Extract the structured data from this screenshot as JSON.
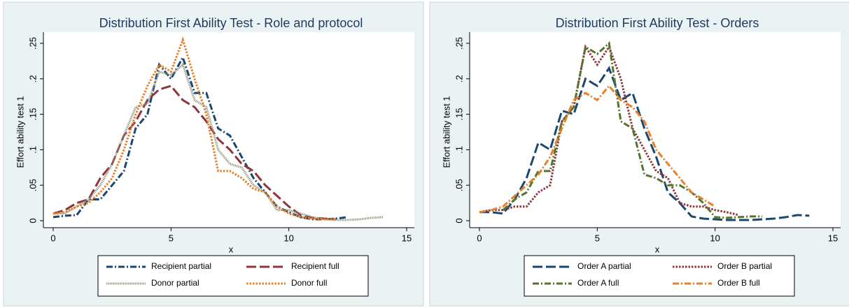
{
  "chart_data": [
    {
      "type": "line",
      "title": "Distribution First Ability Test - Role and protocol",
      "x_label": "x",
      "y_label": "Effort ability test 1",
      "x": [
        0,
        0.5,
        1,
        1.5,
        2,
        2.5,
        3,
        3.5,
        4,
        4.5,
        5,
        5.5,
        6,
        6.5,
        7,
        7.5,
        8,
        8.5,
        9,
        9.5,
        10,
        10.5,
        11,
        11.5,
        12,
        12.5,
        13,
        13.5,
        14
      ],
      "xlim": [
        0,
        15
      ],
      "xticks": [
        0,
        5,
        10,
        15
      ],
      "ylim": [
        0,
        0.25
      ],
      "yticks": [
        0,
        {
          "value": 0.05,
          "label": ".05"
        },
        {
          "value": 0.1,
          "label": ".1"
        },
        {
          "value": 0.15,
          "label": ".15"
        },
        {
          "value": 0.2,
          "label": ".2"
        },
        {
          "value": 0.25,
          "label": ".25"
        }
      ],
      "series": [
        {
          "name": "Recipient partial",
          "color": "#1a476f",
          "line_style": "dash-dot",
          "values": [
            0.005,
            0.007,
            0.008,
            0.03,
            0.03,
            0.05,
            0.07,
            0.13,
            0.15,
            0.22,
            0.2,
            0.23,
            0.18,
            0.18,
            0.13,
            0.12,
            0.09,
            0.06,
            0.04,
            0.02,
            0.012,
            0.005,
            0.002,
            0.002,
            0.003,
            0.005,
            null,
            null,
            null
          ]
        },
        {
          "name": "Recipient full",
          "color": "#90353b",
          "line_style": "long-dash",
          "values": [
            0.01,
            0.015,
            0.025,
            0.03,
            0.06,
            0.08,
            0.12,
            0.14,
            0.17,
            0.185,
            0.19,
            0.17,
            0.16,
            0.14,
            0.115,
            0.1,
            0.08,
            0.07,
            0.05,
            0.035,
            0.02,
            0.008,
            0.004,
            0.003,
            0.002,
            null,
            null,
            null,
            null
          ]
        },
        {
          "name": "Donor partial",
          "color": "#8b8f74",
          "line_style": "fine-dot",
          "values": [
            0.01,
            0.01,
            0.02,
            0.03,
            0.05,
            0.08,
            0.12,
            0.16,
            0.165,
            0.21,
            0.205,
            0.22,
            0.17,
            0.16,
            0.1,
            0.08,
            0.075,
            0.05,
            0.04,
            0.015,
            0.015,
            0.01,
            0.005,
            0.002,
            0.001,
            0.001,
            0.002,
            0.004,
            0.005
          ]
        },
        {
          "name": "Donor full",
          "color": "#e8802a",
          "line_style": "dot",
          "values": [
            0.01,
            0.012,
            0.02,
            0.025,
            0.04,
            0.06,
            0.1,
            0.15,
            0.19,
            0.22,
            0.21,
            0.255,
            0.2,
            0.15,
            0.07,
            0.07,
            0.06,
            0.045,
            0.04,
            0.02,
            0.01,
            0.005,
            0.003,
            0.002,
            0.002,
            null,
            null,
            null,
            null
          ]
        }
      ]
    },
    {
      "type": "line",
      "title": "Distribution First Ability Test - Orders",
      "x_label": "x",
      "y_label": "Effort ability test 1",
      "x": [
        0,
        0.5,
        1,
        1.5,
        2,
        2.5,
        3,
        3.5,
        4,
        4.5,
        5,
        5.5,
        6,
        6.5,
        7,
        7.5,
        8,
        8.5,
        9,
        9.5,
        10,
        10.5,
        11,
        11.5,
        12,
        12.5,
        13,
        13.5,
        14
      ],
      "xlim": [
        0,
        15
      ],
      "xticks": [
        0,
        5,
        10,
        15
      ],
      "ylim": [
        0,
        0.25
      ],
      "yticks": [
        0,
        {
          "value": 0.05,
          "label": ".05"
        },
        {
          "value": 0.1,
          "label": ".1"
        },
        {
          "value": 0.15,
          "label": ".15"
        },
        {
          "value": 0.2,
          "label": ".2"
        },
        {
          "value": 0.25,
          "label": ".25"
        }
      ],
      "series": [
        {
          "name": "Order A partial",
          "color": "#1a476f",
          "line_style": "long-dash",
          "values": [
            0.012,
            0.012,
            0.01,
            0.03,
            0.06,
            0.11,
            0.1,
            0.155,
            0.15,
            0.2,
            0.19,
            0.215,
            0.17,
            0.18,
            0.13,
            0.09,
            0.04,
            0.025,
            0.006,
            0.003,
            0.002,
            0.001,
            0.001,
            0.001,
            0.002,
            0.003,
            0.005,
            0.008,
            0.007
          ]
        },
        {
          "name": "Order B partial",
          "color": "#90353b",
          "line_style": "dot",
          "values": [
            0.012,
            0.015,
            0.015,
            0.02,
            0.02,
            0.04,
            0.05,
            0.14,
            0.16,
            0.245,
            0.22,
            0.245,
            0.2,
            0.13,
            0.1,
            0.07,
            0.06,
            0.025,
            0.02,
            0.02,
            0.015,
            0.012,
            0.008,
            null,
            null,
            null,
            null,
            null,
            null
          ]
        },
        {
          "name": "Order A full",
          "color": "#55752f",
          "line_style": "dash-dot",
          "values": [
            null,
            null,
            0.015,
            0.03,
            0.04,
            0.07,
            0.07,
            0.14,
            0.16,
            0.245,
            0.235,
            0.25,
            0.14,
            0.13,
            0.065,
            0.06,
            0.05,
            0.05,
            0.04,
            0.025,
            0.005,
            0.004,
            0.005,
            0.006,
            0.006,
            null,
            null,
            null,
            null
          ]
        },
        {
          "name": "Order B full",
          "color": "#e8802a",
          "line_style": "dash-dot",
          "values": [
            0.012,
            0.015,
            0.02,
            0.035,
            0.05,
            0.065,
            0.09,
            0.13,
            0.17,
            0.18,
            0.17,
            0.19,
            0.17,
            0.16,
            0.14,
            0.1,
            0.08,
            0.06,
            0.04,
            0.03,
            0.02,
            null,
            null,
            null,
            null,
            null,
            null,
            null,
            null
          ]
        }
      ]
    }
  ]
}
